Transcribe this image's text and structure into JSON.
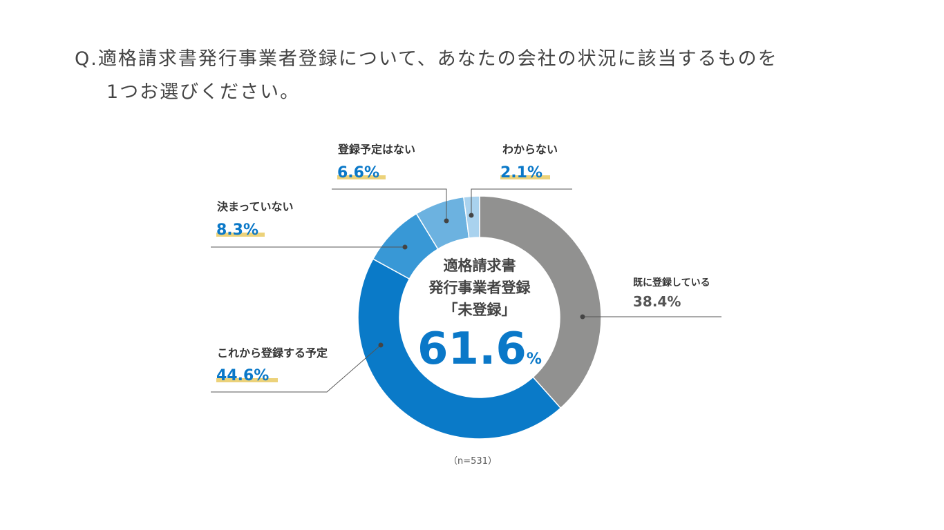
{
  "question": {
    "prefix": "Q.",
    "line1": "適格請求書発行事業者登録について、あなたの会社の状況に該当するものを",
    "line2": "1つお選びください。"
  },
  "chart_data": {
    "type": "pie",
    "donut": true,
    "series": [
      {
        "name": "既に登録している",
        "value": 38.4,
        "label": "38.4%",
        "color": "#919190",
        "highlight": false
      },
      {
        "name": "これから登録する予定",
        "value": 44.6,
        "label": "44.6%",
        "color": "#0a7ac8",
        "highlight": true
      },
      {
        "name": "決まっていない",
        "value": 8.3,
        "label": "8.3%",
        "color": "#3898d6",
        "highlight": true
      },
      {
        "name": "登録予定はない",
        "value": 6.6,
        "label": "6.6%",
        "color": "#6cb2e0",
        "highlight": true
      },
      {
        "name": "わからない",
        "value": 2.1,
        "label": "2.1%",
        "color": "#a9d2ee",
        "highlight": true
      }
    ],
    "center": {
      "line1": "適格請求書",
      "line2": "発行事業者登録",
      "line3": "「未登録」",
      "value": "61.6",
      "unit": "%"
    },
    "note": "（n=531）",
    "colors": {
      "highlight_underline": "#ecd27a",
      "leader_line": "#555555"
    }
  }
}
